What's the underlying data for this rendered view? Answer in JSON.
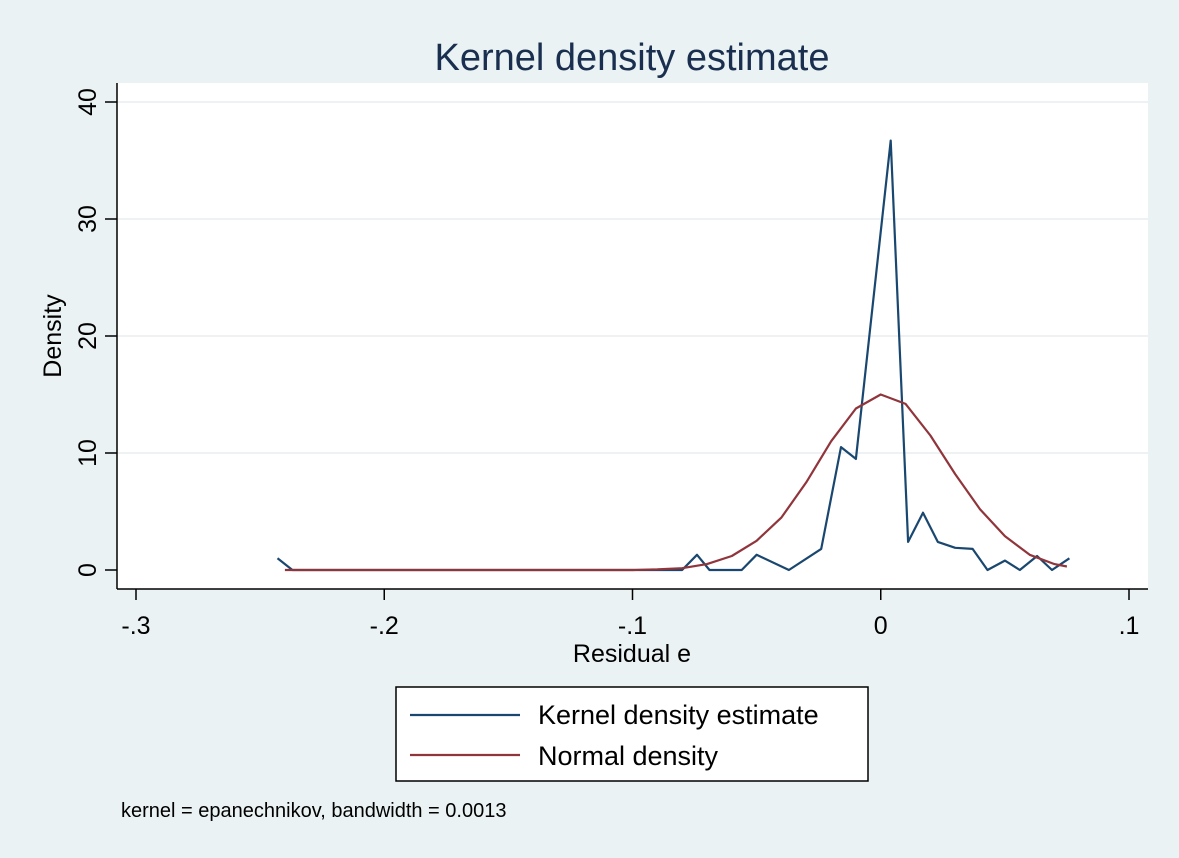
{
  "chart_data": {
    "type": "line",
    "title": "Kernel density estimate",
    "xlabel": "Residual e",
    "ylabel": "Density",
    "xlim": [
      -0.3,
      0.1
    ],
    "ylim": [
      0,
      40
    ],
    "x_ticks": [
      -0.3,
      -0.2,
      -0.1,
      0,
      0.1
    ],
    "x_tick_labels": [
      "-.3",
      "-.2",
      "-.1",
      "0",
      ".1"
    ],
    "y_ticks": [
      0,
      10,
      20,
      30,
      40
    ],
    "y_tick_labels": [
      "0",
      "10",
      "20",
      "30",
      "40"
    ],
    "grid": "horizontal",
    "legend_position": "bottom",
    "series": [
      {
        "name": "Kernel density estimate",
        "color": "#1a476f",
        "x": [
          -0.243,
          -0.237,
          -0.08,
          -0.074,
          -0.069,
          -0.056,
          -0.05,
          -0.037,
          -0.024,
          -0.016,
          -0.01,
          0.004,
          0.011,
          0.017,
          0.023,
          0.03,
          0.037,
          0.043,
          0.05,
          0.056,
          0.063,
          0.069,
          0.076
        ],
        "y": [
          1.0,
          0,
          0,
          1.3,
          0,
          0,
          1.3,
          0,
          1.8,
          10.5,
          9.5,
          36.7,
          2.4,
          4.9,
          2.4,
          1.9,
          1.8,
          0,
          0.8,
          0,
          1.2,
          0,
          1.0
        ]
      },
      {
        "name": "Normal density",
        "color": "#90353b",
        "x": [
          -0.24,
          -0.2,
          -0.15,
          -0.1,
          -0.09,
          -0.08,
          -0.07,
          -0.06,
          -0.05,
          -0.04,
          -0.03,
          -0.02,
          -0.01,
          0,
          0.01,
          0.02,
          0.03,
          0.04,
          0.05,
          0.06,
          0.07,
          0.075
        ],
        "y": [
          0,
          0,
          0,
          0,
          0.05,
          0.15,
          0.5,
          1.2,
          2.5,
          4.5,
          7.5,
          11,
          13.8,
          15,
          14.2,
          11.5,
          8.2,
          5.2,
          2.9,
          1.3,
          0.5,
          0.3
        ]
      }
    ],
    "legend": [
      "Kernel density estimate",
      "Normal density"
    ],
    "note": "kernel = epanechnikov, bandwidth = 0.0013"
  }
}
